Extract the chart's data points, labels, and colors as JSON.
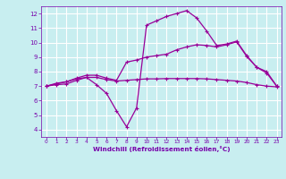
{
  "bg_color": "#c8eef0",
  "line_color": "#990099",
  "grid_color": "#ffffff",
  "xlabel": "Windchill (Refroidissement éolien,°C)",
  "xlabel_color": "#7700aa",
  "tick_color": "#7700aa",
  "ylim": [
    3.5,
    12.5
  ],
  "xlim": [
    -0.5,
    23.5
  ],
  "yticks": [
    4,
    5,
    6,
    7,
    8,
    9,
    10,
    11,
    12
  ],
  "xticks": [
    0,
    1,
    2,
    3,
    4,
    5,
    6,
    7,
    8,
    9,
    10,
    11,
    12,
    13,
    14,
    15,
    16,
    17,
    18,
    19,
    20,
    21,
    22,
    23
  ],
  "line1_x": [
    0,
    1,
    2,
    3,
    4,
    5,
    6,
    7,
    8,
    9,
    10,
    11,
    12,
    13,
    14,
    15,
    16,
    17,
    18,
    19,
    20,
    21,
    22,
    23
  ],
  "line1_y": [
    7.0,
    7.2,
    7.3,
    7.5,
    7.6,
    7.1,
    6.5,
    5.3,
    4.2,
    5.5,
    11.2,
    11.5,
    11.8,
    12.0,
    12.2,
    11.7,
    10.8,
    9.8,
    9.9,
    10.1,
    9.1,
    8.3,
    8.0,
    7.0
  ],
  "line2_x": [
    0,
    1,
    2,
    3,
    4,
    5,
    6,
    7,
    8,
    9,
    10,
    11,
    12,
    13,
    14,
    15,
    16,
    17,
    18,
    19,
    20,
    21,
    22,
    23
  ],
  "line2_y": [
    7.0,
    7.15,
    7.3,
    7.55,
    7.75,
    7.75,
    7.55,
    7.4,
    8.65,
    8.8,
    9.0,
    9.1,
    9.2,
    9.5,
    9.7,
    9.85,
    9.8,
    9.7,
    9.85,
    10.05,
    9.05,
    8.3,
    7.9,
    7.0
  ],
  "line3_x": [
    0,
    1,
    2,
    3,
    4,
    5,
    6,
    7,
    8,
    9,
    10,
    11,
    12,
    13,
    14,
    15,
    16,
    17,
    18,
    19,
    20,
    21,
    22,
    23
  ],
  "line3_y": [
    7.0,
    7.1,
    7.15,
    7.4,
    7.6,
    7.6,
    7.45,
    7.35,
    7.4,
    7.45,
    7.5,
    7.5,
    7.52,
    7.52,
    7.52,
    7.52,
    7.5,
    7.45,
    7.4,
    7.35,
    7.25,
    7.1,
    7.0,
    6.95
  ]
}
